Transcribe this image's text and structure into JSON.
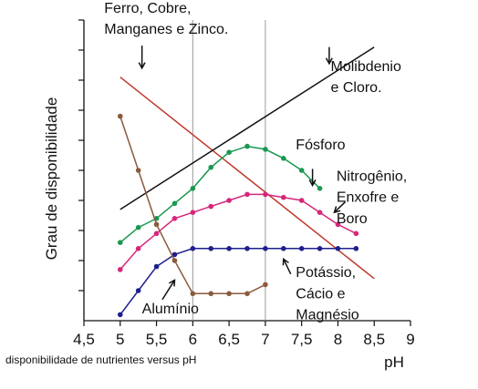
{
  "chart_data": {
    "type": "line",
    "title": "",
    "caption": "disponibilidade de nutrientes versus pH",
    "xlabel": "pH",
    "ylabel": "Grau de disponibilidade",
    "xlim": [
      4.5,
      9
    ],
    "ylim": [
      0,
      10
    ],
    "x_ticks": [
      "4,5",
      "5",
      "5,5",
      "6",
      "6,5",
      "7",
      "7,5",
      "8",
      "8,5",
      "9"
    ],
    "x_tick_values": [
      4.5,
      5,
      5.5,
      6,
      6.5,
      7,
      7.5,
      8,
      8.5,
      9
    ],
    "y_tick_count": 10,
    "vertical_gridlines_at": [
      6,
      7
    ],
    "series": [
      {
        "color": "#c0392b",
        "markers": false,
        "points": [
          [
            5,
            8.1
          ],
          [
            8.5,
            1.4
          ]
        ]
      },
      {
        "color": "#111111",
        "markers": false,
        "points": [
          [
            5,
            3.7
          ],
          [
            8.5,
            9.1
          ]
        ]
      },
      {
        "color": "#1a9850",
        "markers": true,
        "points": [
          [
            5,
            2.6
          ],
          [
            5.25,
            3.1
          ],
          [
            5.5,
            3.4
          ],
          [
            5.75,
            3.9
          ],
          [
            6,
            4.4
          ],
          [
            6.25,
            5.1
          ],
          [
            6.5,
            5.6
          ],
          [
            6.75,
            5.8
          ],
          [
            7,
            5.7
          ],
          [
            7.25,
            5.4
          ],
          [
            7.5,
            5.0
          ],
          [
            7.75,
            4.4
          ]
        ]
      },
      {
        "color": "#d6267a",
        "markers": true,
        "points": [
          [
            5,
            1.7
          ],
          [
            5.25,
            2.4
          ],
          [
            5.5,
            2.9
          ],
          [
            5.75,
            3.4
          ],
          [
            6,
            3.6
          ],
          [
            6.25,
            3.8
          ],
          [
            6.5,
            4.0
          ],
          [
            6.75,
            4.2
          ],
          [
            7,
            4.2
          ],
          [
            7.25,
            4.1
          ],
          [
            7.5,
            4.0
          ],
          [
            7.75,
            3.6
          ],
          [
            8,
            3.2
          ],
          [
            8.25,
            2.9
          ]
        ]
      },
      {
        "color": "#1f1f8f",
        "markers": true,
        "points": [
          [
            5,
            0.2
          ],
          [
            5.25,
            1.0
          ],
          [
            5.5,
            1.8
          ],
          [
            5.75,
            2.2
          ],
          [
            6,
            2.4
          ],
          [
            6.25,
            2.4
          ],
          [
            6.5,
            2.4
          ],
          [
            6.75,
            2.4
          ],
          [
            7,
            2.4
          ],
          [
            7.25,
            2.4
          ],
          [
            7.5,
            2.4
          ],
          [
            7.75,
            2.4
          ],
          [
            8,
            2.4
          ],
          [
            8.25,
            2.4
          ]
        ]
      },
      {
        "color": "#8b5a3c",
        "markers": true,
        "points": [
          [
            5,
            6.8
          ],
          [
            5.25,
            5.0
          ],
          [
            5.5,
            3.2
          ],
          [
            5.75,
            2.0
          ],
          [
            6,
            0.9
          ],
          [
            6.25,
            0.9
          ],
          [
            6.5,
            0.9
          ],
          [
            6.75,
            0.9
          ],
          [
            7,
            1.2
          ]
        ]
      }
    ],
    "annotations": [
      {
        "text": "Ferro, Cobre,",
        "ax": 4.78,
        "ay": 10.25
      },
      {
        "text": "Manganes e Zinco.",
        "ax": 4.78,
        "ay": 9.55
      },
      {
        "text": "Molibdenio",
        "ax": 7.9,
        "ay": 8.3
      },
      {
        "text": "e Cloro.",
        "ax": 7.9,
        "ay": 7.6
      },
      {
        "text": "Fósforo",
        "ax": 7.42,
        "ay": 5.7
      },
      {
        "text": "Nitrogênio,",
        "ax": 7.98,
        "ay": 4.65
      },
      {
        "text": "Enxofre e",
        "ax": 7.98,
        "ay": 3.95
      },
      {
        "text": "Boro",
        "ax": 7.98,
        "ay": 3.25
      },
      {
        "text": "Potássio,",
        "ax": 7.42,
        "ay": 1.45
      },
      {
        "text": "Cácio e",
        "ax": 7.42,
        "ay": 0.75
      },
      {
        "text": "Magnésio",
        "ax": 7.42,
        "ay": 0.05
      },
      {
        "text": "Alumínio",
        "ax": 5.3,
        "ay": 0.25
      }
    ],
    "arrows": [
      {
        "from": [
          5.3,
          9.15
        ],
        "to": [
          5.3,
          8.4
        ]
      },
      {
        "from": [
          7.88,
          9.1
        ],
        "to": [
          7.88,
          8.55
        ]
      },
      {
        "from": [
          7.65,
          5.05
        ],
        "to": [
          7.65,
          4.5
        ]
      },
      {
        "from": [
          8.1,
          3.95
        ],
        "to": [
          7.95,
          3.6
        ]
      },
      {
        "from": [
          7.35,
          1.55
        ],
        "to": [
          7.25,
          2.05
        ]
      },
      {
        "from": [
          5.58,
          0.7
        ],
        "to": [
          5.75,
          1.35
        ]
      }
    ]
  }
}
